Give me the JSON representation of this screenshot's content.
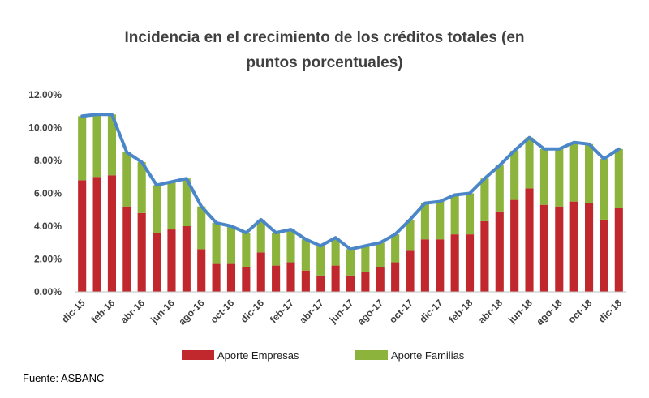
{
  "chart_data": {
    "type": "bar",
    "stacked": true,
    "title_lines": [
      "Incidencia en el crecimiento de los créditos totales (en",
      "puntos porcentuales)"
    ],
    "source": "Fuente: ASBANC",
    "y_ticks": [
      "0.00%",
      "2.00%",
      "4.00%",
      "6.00%",
      "8.00%",
      "10.00%",
      "12.00%"
    ],
    "ylim": [
      0,
      12
    ],
    "x": [
      "dic-15",
      "ene-16",
      "feb-16",
      "mar-16",
      "abr-16",
      "may-16",
      "jun-16",
      "jul-16",
      "ago-16",
      "sep-16",
      "oct-16",
      "nov-16",
      "dic-16",
      "ene-17",
      "feb-17",
      "mar-17",
      "abr-17",
      "may-17",
      "jun-17",
      "jul-17",
      "ago-17",
      "sep-17",
      "oct-17",
      "nov-17",
      "dic-17",
      "ene-18",
      "feb-18",
      "mar-18",
      "abr-18",
      "may-18",
      "jun-18",
      "jul-18",
      "ago-18",
      "sep-18",
      "oct-18",
      "nov-18",
      "dic-18"
    ],
    "x_tick_labels": [
      "dic-15",
      "",
      "feb-16",
      "",
      "abr-16",
      "",
      "jun-16",
      "",
      "ago-16",
      "",
      "oct-16",
      "",
      "dic-16",
      "",
      "feb-17",
      "",
      "abr-17",
      "",
      "jun-17",
      "",
      "ago-17",
      "",
      "oct-17",
      "",
      "dic-17",
      "",
      "feb-18",
      "",
      "abr-18",
      "",
      "jun-18",
      "",
      "ago-18",
      "",
      "oct-18",
      "",
      "dic-18"
    ],
    "series": [
      {
        "name": "Aporte Empresas",
        "color": "#c0282d",
        "values": [
          6.8,
          7.0,
          7.1,
          5.2,
          4.8,
          3.6,
          3.8,
          4.0,
          2.6,
          1.7,
          1.7,
          1.5,
          2.4,
          1.6,
          1.8,
          1.3,
          1.0,
          1.6,
          1.0,
          1.2,
          1.5,
          1.8,
          2.5,
          3.2,
          3.2,
          3.5,
          3.5,
          4.3,
          4.9,
          5.6,
          6.3,
          5.3,
          5.2,
          5.5,
          5.4,
          4.4,
          5.1
        ]
      },
      {
        "name": "Aporte Familias",
        "color": "#8cb43c",
        "values": [
          3.9,
          3.8,
          3.7,
          3.3,
          3.1,
          2.9,
          2.9,
          2.9,
          2.6,
          2.5,
          2.3,
          2.1,
          2.0,
          2.0,
          2.0,
          1.9,
          1.8,
          1.7,
          1.6,
          1.6,
          1.5,
          1.7,
          1.9,
          2.2,
          2.3,
          2.4,
          2.5,
          2.6,
          2.8,
          3.0,
          3.1,
          3.4,
          3.5,
          3.6,
          3.6,
          3.7,
          3.6
        ]
      }
    ],
    "total_line": {
      "color": "#4a86c8",
      "values": [
        10.7,
        10.8,
        10.8,
        8.5,
        7.9,
        6.5,
        6.7,
        6.9,
        5.2,
        4.2,
        4.0,
        3.6,
        4.4,
        3.6,
        3.8,
        3.2,
        2.8,
        3.3,
        2.6,
        2.8,
        3.0,
        3.5,
        4.4,
        5.4,
        5.5,
        5.9,
        6.0,
        6.9,
        7.7,
        8.6,
        9.4,
        8.7,
        8.7,
        9.1,
        9.0,
        8.1,
        8.7
      ]
    },
    "grid": false,
    "legend_position": "bottom"
  }
}
